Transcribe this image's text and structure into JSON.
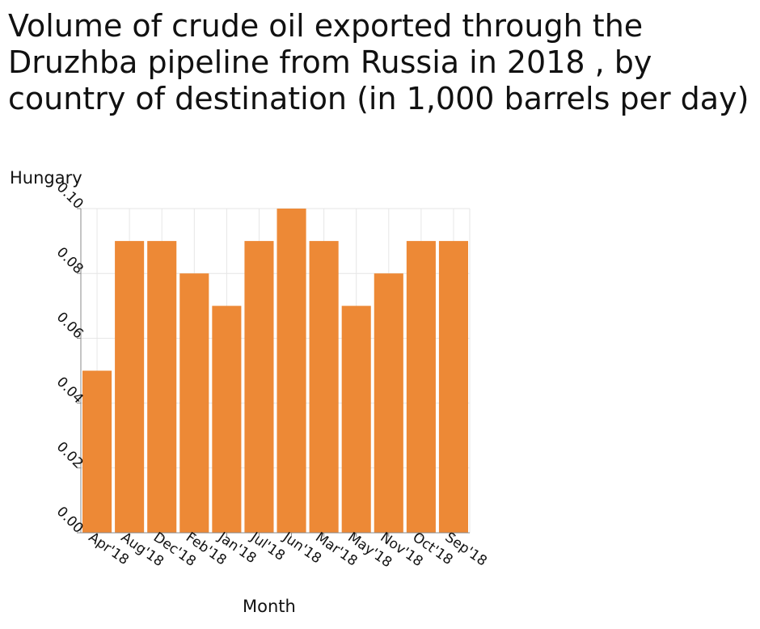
{
  "chart_data": {
    "type": "bar",
    "title": "Volume of crude oil exported through the Druzhba pipeline from Russia in 2018 , by country of destination (in 1,000 barrels per day)",
    "xlabel": "Month",
    "ylabel": "Hungary",
    "categories": [
      "Apr'18",
      "Aug'18",
      "Dec'18",
      "Feb'18",
      "Jan'18",
      "Jul'18",
      "Jun'18",
      "Mar'18",
      "May'18",
      "Nov'18",
      "Oct'18",
      "Sep'18"
    ],
    "values": [
      0.05,
      0.09,
      0.09,
      0.08,
      0.07,
      0.09,
      0.1,
      0.09,
      0.07,
      0.08,
      0.09,
      0.09
    ],
    "ylim": [
      0,
      0.1
    ],
    "yticks": [
      "0.00",
      "0.02",
      "0.04",
      "0.06",
      "0.08",
      "0.10"
    ],
    "grid": true,
    "bar_color": "#ed8936"
  }
}
